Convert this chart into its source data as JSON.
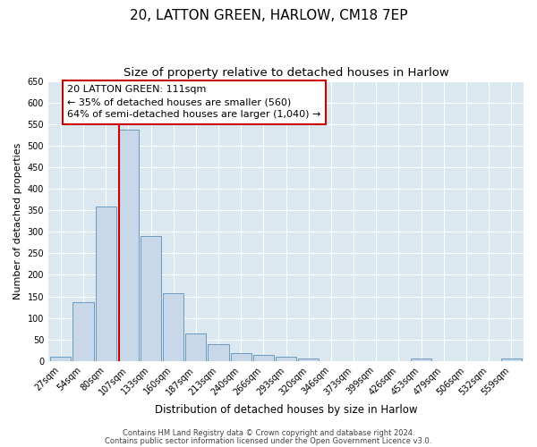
{
  "title": "20, LATTON GREEN, HARLOW, CM18 7EP",
  "subtitle": "Size of property relative to detached houses in Harlow",
  "xlabel": "Distribution of detached houses by size in Harlow",
  "ylabel": "Number of detached properties",
  "bar_labels": [
    "27sqm",
    "54sqm",
    "80sqm",
    "107sqm",
    "133sqm",
    "160sqm",
    "187sqm",
    "213sqm",
    "240sqm",
    "266sqm",
    "293sqm",
    "320sqm",
    "346sqm",
    "373sqm",
    "399sqm",
    "426sqm",
    "453sqm",
    "479sqm",
    "506sqm",
    "532sqm",
    "559sqm"
  ],
  "bar_values": [
    10,
    136,
    358,
    537,
    290,
    157,
    65,
    40,
    18,
    14,
    10,
    7,
    0,
    0,
    0,
    0,
    5,
    0,
    0,
    0,
    5
  ],
  "bar_color": "#c8d8e8",
  "bar_edge_color": "#6a9abf",
  "vline_x_index": 2.57,
  "vline_color": "#cc0000",
  "annotation_text": "20 LATTON GREEN: 111sqm\n← 35% of detached houses are smaller (560)\n64% of semi-detached houses are larger (1,040) →",
  "annotation_box_facecolor": "#ffffff",
  "annotation_box_edgecolor": "#cc0000",
  "ylim": [
    0,
    650
  ],
  "yticks": [
    0,
    50,
    100,
    150,
    200,
    250,
    300,
    350,
    400,
    450,
    500,
    550,
    600,
    650
  ],
  "fig_bg_color": "#ffffff",
  "plot_bg_color": "#dce8f0",
  "grid_color": "#ffffff",
  "footer_line1": "Contains HM Land Registry data © Crown copyright and database right 2024.",
  "footer_line2": "Contains public sector information licensed under the Open Government Licence v3.0.",
  "title_fontsize": 11,
  "subtitle_fontsize": 9.5,
  "ylabel_fontsize": 8,
  "xlabel_fontsize": 8.5,
  "tick_fontsize": 7,
  "ann_fontsize": 8
}
